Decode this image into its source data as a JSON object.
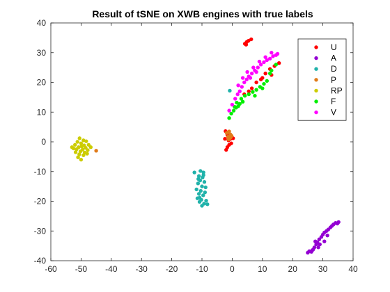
{
  "chart_data": {
    "type": "scatter",
    "title": "Result of tSNE on XWB engines with true labels",
    "xlabel": "",
    "ylabel": "",
    "xlim": [
      -60,
      40
    ],
    "ylim": [
      -40,
      40
    ],
    "xticks": [
      -60,
      -50,
      -40,
      -30,
      -20,
      -10,
      0,
      10,
      20,
      30,
      40
    ],
    "yticks": [
      -40,
      -30,
      -20,
      -10,
      0,
      10,
      20,
      30,
      40
    ],
    "grid": false,
    "legend_position": "top-right",
    "series": [
      {
        "name": "U",
        "color": "#ff0000",
        "points": [
          [
            4.2,
            33.0
          ],
          [
            4.8,
            33.6
          ],
          [
            5.4,
            34.0
          ],
          [
            6.3,
            34.5
          ],
          [
            4.6,
            32.7
          ],
          [
            -2.2,
            3.6
          ],
          [
            -1.6,
            2.4
          ],
          [
            -2.4,
            1.0
          ],
          [
            -1.2,
            0.5
          ],
          [
            -0.6,
            1.0
          ],
          [
            -0.3,
            -0.5
          ],
          [
            -1.0,
            -1.0
          ],
          [
            -1.6,
            -1.8
          ],
          [
            -2.0,
            -2.7
          ],
          [
            0.3,
            1.2
          ],
          [
            4.0,
            16.0
          ],
          [
            5.5,
            17.0
          ],
          [
            6.5,
            18.0
          ],
          [
            8.0,
            20.0
          ],
          [
            9.5,
            21.0
          ],
          [
            11.0,
            23.0
          ],
          [
            12.5,
            24.5
          ],
          [
            14.0,
            25.5
          ],
          [
            15.5,
            26.5
          ],
          [
            10.0,
            21.5
          ],
          [
            13.0,
            22.5
          ]
        ]
      },
      {
        "name": "A",
        "color": "#9400d3",
        "points": [
          [
            25.0,
            -37.3
          ],
          [
            25.5,
            -36.8
          ],
          [
            26.2,
            -37.0
          ],
          [
            26.8,
            -36.2
          ],
          [
            27.2,
            -35.5
          ],
          [
            27.8,
            -34.5
          ],
          [
            27.5,
            -33.5
          ],
          [
            28.2,
            -33.8
          ],
          [
            28.8,
            -32.8
          ],
          [
            29.5,
            -32.0
          ],
          [
            30.0,
            -31.2
          ],
          [
            30.5,
            -30.5
          ],
          [
            31.2,
            -30.0
          ],
          [
            31.8,
            -29.5
          ],
          [
            32.5,
            -28.8
          ],
          [
            33.0,
            -28.3
          ],
          [
            33.5,
            -27.8
          ],
          [
            34.2,
            -27.3
          ],
          [
            34.8,
            -27.5
          ],
          [
            35.2,
            -27.0
          ],
          [
            29.0,
            -34.5
          ],
          [
            30.5,
            -33.5
          ],
          [
            31.5,
            -31.5
          ],
          [
            28.5,
            -35.5
          ],
          [
            26.5,
            -36.5
          ]
        ]
      },
      {
        "name": "D",
        "color": "#20b2aa",
        "points": [
          [
            -0.8,
            17.2
          ],
          [
            -12.5,
            -10.3
          ],
          [
            -10.5,
            -9.8
          ],
          [
            -9.5,
            -10.3
          ],
          [
            -11.0,
            -11.5
          ],
          [
            -9.8,
            -12.0
          ],
          [
            -10.6,
            -13.0
          ],
          [
            -9.2,
            -13.5
          ],
          [
            -11.3,
            -14.0
          ],
          [
            -10.0,
            -15.0
          ],
          [
            -8.8,
            -15.3
          ],
          [
            -11.8,
            -16.0
          ],
          [
            -10.4,
            -16.5
          ],
          [
            -9.0,
            -17.0
          ],
          [
            -11.0,
            -17.5
          ],
          [
            -9.6,
            -18.0
          ],
          [
            -11.5,
            -19.0
          ],
          [
            -10.2,
            -19.5
          ],
          [
            -8.6,
            -19.8
          ],
          [
            -10.8,
            -20.2
          ],
          [
            -9.3,
            -20.8
          ],
          [
            -8.2,
            -21.0
          ],
          [
            -10.0,
            -21.5
          ],
          [
            -11.2,
            -12.5
          ],
          [
            -9.5,
            -11.2
          ],
          [
            -10.8,
            -18.8
          ]
        ]
      },
      {
        "name": "P",
        "color": "#e07b1a",
        "points": [
          [
            -1.8,
            3.0
          ],
          [
            -1.0,
            3.5
          ],
          [
            -0.6,
            2.5
          ],
          [
            -1.4,
            1.7
          ],
          [
            -0.8,
            1.2
          ],
          [
            -0.2,
            2.0
          ],
          [
            -1.2,
            0.8
          ],
          [
            -0.5,
            1.5
          ],
          [
            -45.0,
            -3.0
          ]
        ]
      },
      {
        "name": "RP",
        "color": "#cccc00",
        "points": [
          [
            -50.5,
            1.2
          ],
          [
            -49.2,
            0.5
          ],
          [
            -51.2,
            0.0
          ],
          [
            -48.3,
            0.2
          ],
          [
            -50.0,
            -0.5
          ],
          [
            -52.0,
            -1.0
          ],
          [
            -49.0,
            -1.2
          ],
          [
            -47.5,
            -1.0
          ],
          [
            -50.8,
            -1.8
          ],
          [
            -48.5,
            -2.0
          ],
          [
            -51.5,
            -2.5
          ],
          [
            -49.5,
            -2.6
          ],
          [
            -47.8,
            -2.8
          ],
          [
            -50.2,
            -3.2
          ],
          [
            -52.5,
            -2.2
          ],
          [
            -48.8,
            -3.6
          ],
          [
            -50.6,
            -4.2
          ],
          [
            -49.2,
            -4.5
          ],
          [
            -51.0,
            -5.2
          ],
          [
            -50.0,
            -6.0
          ],
          [
            -48.0,
            -4.0
          ],
          [
            -49.8,
            -1.5
          ],
          [
            -51.8,
            -3.5
          ],
          [
            -46.8,
            -1.8
          ],
          [
            -53.0,
            -1.8
          ]
        ]
      },
      {
        "name": "F",
        "color": "#00ee00",
        "points": [
          [
            -1.0,
            8.0
          ],
          [
            -0.3,
            9.5
          ],
          [
            0.5,
            10.5
          ],
          [
            1.3,
            11.5
          ],
          [
            2.0,
            12.0
          ],
          [
            2.5,
            12.8
          ],
          [
            1.5,
            13.2
          ],
          [
            3.0,
            14.5
          ],
          [
            4.2,
            15.5
          ],
          [
            5.5,
            16.0
          ],
          [
            6.8,
            16.8
          ],
          [
            8.0,
            17.5
          ],
          [
            9.2,
            18.5
          ],
          [
            10.5,
            19.5
          ],
          [
            11.5,
            20.5
          ],
          [
            12.5,
            23.0
          ],
          [
            13.0,
            24.0
          ],
          [
            14.5,
            26.0
          ],
          [
            7.5,
            15.5
          ],
          [
            10.0,
            18.0
          ],
          [
            0.8,
            11.8
          ],
          [
            3.5,
            13.5
          ]
        ]
      },
      {
        "name": "V",
        "color": "#ff00ff",
        "points": [
          [
            -1.0,
            10.5
          ],
          [
            0.0,
            12.5
          ],
          [
            1.0,
            14.5
          ],
          [
            1.8,
            16.0
          ],
          [
            2.5,
            17.0
          ],
          [
            3.2,
            18.5
          ],
          [
            4.0,
            20.0
          ],
          [
            4.8,
            21.0
          ],
          [
            5.5,
            22.0
          ],
          [
            6.5,
            23.0
          ],
          [
            7.5,
            24.0
          ],
          [
            8.5,
            25.0
          ],
          [
            9.5,
            26.0
          ],
          [
            10.5,
            26.8
          ],
          [
            11.5,
            27.5
          ],
          [
            12.5,
            28.0
          ],
          [
            13.5,
            28.8
          ],
          [
            14.5,
            29.2
          ],
          [
            15.0,
            29.6
          ],
          [
            3.5,
            21.5
          ],
          [
            5.0,
            23.5
          ],
          [
            7.0,
            25.0
          ],
          [
            9.0,
            27.0
          ],
          [
            11.0,
            28.5
          ],
          [
            13.0,
            30.0
          ],
          [
            6.0,
            21.5
          ],
          [
            8.0,
            23.5
          ],
          [
            2.0,
            19.0
          ]
        ]
      }
    ]
  }
}
